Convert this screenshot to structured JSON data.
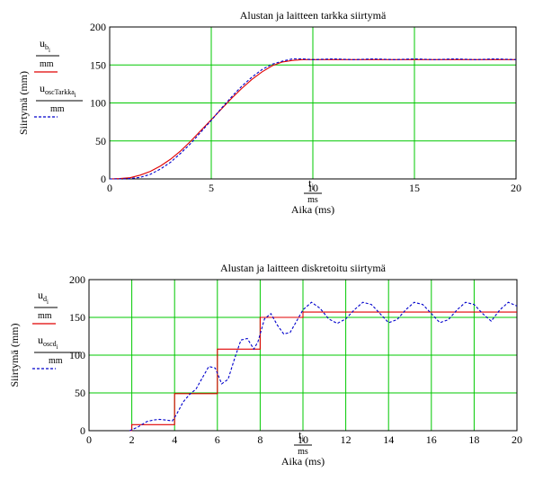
{
  "colors": {
    "grid": "#00c800",
    "series_exact": "#e00000",
    "series_osc": "#0000cc",
    "axis": "#000000"
  },
  "chart_data": [
    {
      "type": "line",
      "title": "Alustan ja laitteen tarkka siirtymä",
      "ylabel": "Siirtymä (mm)",
      "xlabel_expr": {
        "var": "t",
        "sub": "i",
        "den": "ms"
      },
      "xlabel": "Aika (ms)",
      "xlim": [
        0,
        20
      ],
      "ylim": [
        0,
        200
      ],
      "xticks": [
        0,
        5,
        10,
        15,
        20
      ],
      "yticks": [
        0,
        50,
        100,
        150,
        200
      ],
      "grid": true,
      "legend": [
        {
          "var": "u",
          "sub": "b",
          "subsub": "i",
          "den": "mm",
          "style": "solid",
          "colorKey": "series_exact"
        },
        {
          "var": "u",
          "sub": "oscTarkka",
          "subsub": "i",
          "den": "mm",
          "style": "dashed",
          "colorKey": "series_osc"
        }
      ],
      "series": [
        {
          "x": [
            0,
            0.5,
            1,
            1.5,
            2,
            2.5,
            3,
            3.5,
            4,
            4.5,
            5,
            5.5,
            6,
            6.5,
            7,
            7.5,
            8,
            8.5,
            9,
            9.5,
            10,
            11,
            12,
            13,
            14,
            15,
            16,
            17,
            18,
            19,
            20
          ],
          "y": [
            0,
            0.5,
            1.5,
            5,
            10,
            17,
            26,
            37,
            50,
            64,
            78,
            92,
            106,
            119,
            131,
            141,
            149,
            154,
            156,
            157,
            157,
            157,
            157,
            157,
            157,
            157,
            157,
            157,
            157,
            157,
            157
          ]
        },
        {
          "x": [
            0,
            0.5,
            1,
            1.5,
            2,
            2.5,
            3,
            3.5,
            4,
            4.5,
            5,
            5.5,
            6,
            6.5,
            7,
            7.5,
            8,
            8.5,
            9,
            9.5,
            10,
            11,
            12,
            13,
            14,
            15,
            16,
            17,
            18,
            19,
            20
          ],
          "y": [
            0,
            0,
            0.5,
            2,
            6,
            13,
            22,
            34,
            47,
            62,
            77,
            93,
            108,
            122,
            134,
            144,
            151,
            155,
            158,
            158,
            157,
            158,
            157,
            158,
            157,
            158,
            157,
            158,
            157,
            158,
            157
          ]
        }
      ]
    },
    {
      "type": "line",
      "title": "Alustan ja laitteen diskretoitu siirtymä",
      "ylabel": "Siirtymä (mm)",
      "xlabel_expr": {
        "var": "t",
        "sub": "i",
        "den": "ms"
      },
      "xlabel": "Aika (ms)",
      "xlim": [
        0,
        20
      ],
      "ylim": [
        0,
        200
      ],
      "xticks": [
        0,
        2,
        4,
        6,
        8,
        10,
        12,
        14,
        16,
        18,
        20
      ],
      "yticks": [
        0,
        50,
        100,
        150,
        200
      ],
      "grid": true,
      "legend": [
        {
          "var": "u",
          "sub": "d",
          "subsub": "i",
          "den": "mm",
          "style": "solid",
          "colorKey": "series_exact"
        },
        {
          "var": "u",
          "sub": "oscd",
          "subsub": "i",
          "den": "mm",
          "style": "dashed",
          "colorKey": "series_osc"
        }
      ],
      "series": [
        {
          "x": [
            1.9,
            2,
            2,
            4,
            4,
            6,
            6,
            8,
            8,
            10,
            10,
            20
          ],
          "y": [
            0,
            0,
            8,
            8,
            49,
            49,
            108,
            108,
            150,
            150,
            157,
            157
          ]
        },
        {
          "x": [
            1.9,
            2.3,
            2.7,
            3,
            3.3,
            3.6,
            3.9,
            4.1,
            4.4,
            4.7,
            5,
            5.3,
            5.6,
            5.9,
            6.2,
            6.5,
            6.8,
            7.1,
            7.4,
            7.7,
            7.9,
            8.2,
            8.5,
            8.8,
            9.1,
            9.4,
            9.7,
            10,
            10.4,
            10.8,
            11.2,
            11.6,
            12,
            12.4,
            12.8,
            13.2,
            13.6,
            14,
            14.4,
            14.8,
            15.2,
            15.6,
            16,
            16.4,
            16.8,
            17.2,
            17.6,
            18,
            18.4,
            18.8,
            19.2,
            19.6,
            20
          ],
          "y": [
            0,
            5,
            12,
            14,
            15,
            14,
            13,
            22,
            38,
            48,
            55,
            70,
            85,
            83,
            62,
            68,
            95,
            120,
            122,
            108,
            118,
            148,
            155,
            140,
            128,
            130,
            145,
            160,
            170,
            162,
            148,
            142,
            148,
            160,
            170,
            167,
            155,
            143,
            147,
            160,
            170,
            167,
            155,
            143,
            147,
            160,
            170,
            167,
            155,
            145,
            160,
            170,
            165
          ]
        }
      ]
    }
  ]
}
